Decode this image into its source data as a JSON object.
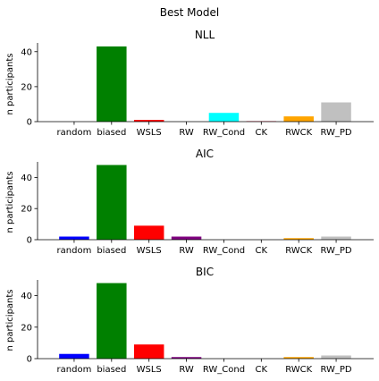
{
  "figure_title": "Best Model",
  "chart_data": [
    {
      "type": "bar",
      "title": "NLL",
      "xlabel": "",
      "ylabel": "n participants",
      "categories": [
        "random",
        "biased",
        "WSLS",
        "RW",
        "RW_Cond",
        "CK",
        "RWCK",
        "RW_PD"
      ],
      "values": [
        0,
        43,
        1,
        0,
        5,
        0.5,
        3,
        11
      ],
      "colors": [
        "#0000ff",
        "#008000",
        "#ff0000",
        "#800080",
        "#00ffff",
        "#ffc0cb",
        "#ffa500",
        "#c0c0c0"
      ],
      "ylim": [
        0,
        45
      ],
      "yticks": [
        0,
        20,
        40
      ],
      "grid": false
    },
    {
      "type": "bar",
      "title": "AIC",
      "xlabel": "",
      "ylabel": "n participants",
      "categories": [
        "random",
        "biased",
        "WSLS",
        "RW",
        "RW_Cond",
        "CK",
        "RWCK",
        "RW_PD"
      ],
      "values": [
        2,
        48,
        9,
        2,
        0,
        0,
        1,
        2
      ],
      "colors": [
        "#0000ff",
        "#008000",
        "#ff0000",
        "#800080",
        "#00ffff",
        "#ffc0cb",
        "#ffa500",
        "#c0c0c0"
      ],
      "ylim": [
        0,
        50
      ],
      "yticks": [
        0,
        20,
        40
      ],
      "grid": false
    },
    {
      "type": "bar",
      "title": "BIC",
      "xlabel": "",
      "ylabel": "n participants",
      "categories": [
        "random",
        "biased",
        "WSLS",
        "RW",
        "RW_Cond",
        "CK",
        "RWCK",
        "RW_PD"
      ],
      "values": [
        3,
        48,
        9,
        1,
        0,
        0,
        1,
        2
      ],
      "colors": [
        "#0000ff",
        "#008000",
        "#ff0000",
        "#800080",
        "#00ffff",
        "#ffc0cb",
        "#ffa500",
        "#c0c0c0"
      ],
      "ylim": [
        0,
        50
      ],
      "yticks": [
        0,
        20,
        40
      ],
      "grid": false
    }
  ]
}
